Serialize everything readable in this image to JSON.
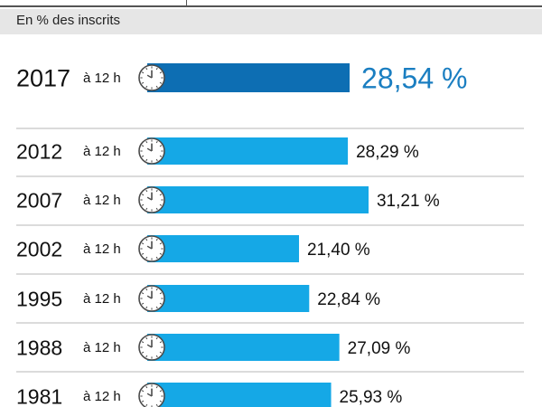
{
  "header": {
    "subtitle": "En % des inscrits"
  },
  "colors": {
    "highlight_bar": "#0d6eb3",
    "bar": "#15a8e6",
    "highlight_text": "#1a7ec1",
    "separator": "#cfcfcf",
    "text": "#111111"
  },
  "icons": {
    "clock": "clock-icon"
  },
  "chart_data": {
    "type": "bar",
    "orientation": "horizontal",
    "categories": [
      "2017",
      "2012",
      "2007",
      "2002",
      "1995",
      "1988",
      "1981"
    ],
    "time_labels": [
      "à 12 h",
      "à 12 h",
      "à 12 h",
      "à 12 h",
      "à 12 h",
      "à 12 h",
      "à 12 h"
    ],
    "values": [
      28.54,
      28.29,
      31.21,
      21.4,
      22.84,
      27.09,
      25.93
    ],
    "value_labels": [
      "28,54 %",
      "28,29 %",
      "31,21 %",
      "21,40 %",
      "22,84 %",
      "27,09 %",
      "25,93 %"
    ],
    "highlight_index": 0,
    "xlabel": "",
    "ylabel": "",
    "grid": false
  }
}
